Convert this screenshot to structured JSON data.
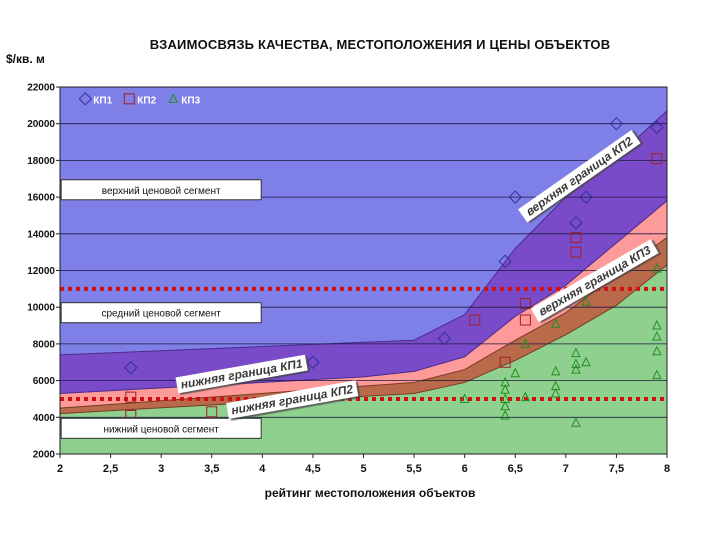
{
  "chart_data": {
    "type": "scatter",
    "title": "ВЗАИМОСВЯЗЬ КАЧЕСТВА, МЕСТОПОЛОЖЕНИЯ И ЦЕНЫ ОБЪЕКТОВ",
    "ylabel": "$/кв. м",
    "xlabel": "рейтинг местоположения объектов",
    "xlim": [
      2,
      8
    ],
    "ylim": [
      2000,
      22000
    ],
    "xticks": [
      "2",
      "2,5",
      "3",
      "3,5",
      "4",
      "4,5",
      "5",
      "5,5",
      "6",
      "6,5",
      "7",
      "7,5",
      "8"
    ],
    "xtick_values": [
      2,
      2.5,
      3,
      3.5,
      4,
      4.5,
      5,
      5.5,
      6,
      6.5,
      7,
      7.5,
      8
    ],
    "yticks": [
      "2000",
      "4000",
      "6000",
      "8000",
      "10000",
      "12000",
      "14000",
      "16000",
      "18000",
      "20000",
      "22000"
    ],
    "ytick_values": [
      2000,
      4000,
      6000,
      8000,
      10000,
      12000,
      14000,
      16000,
      18000,
      20000,
      22000
    ],
    "grid": "horizontal",
    "legend": {
      "placement": "top-left",
      "entries": [
        {
          "name": "КП1",
          "marker": "diamond",
          "color": "#3030a0"
        },
        {
          "name": "КП2",
          "marker": "square",
          "color": "#a02020"
        },
        {
          "name": "КП3",
          "marker": "triangle",
          "color": "#209020"
        }
      ]
    },
    "series": [
      {
        "name": "КП1",
        "marker": "diamond",
        "color": "#3030a0",
        "points": [
          [
            2.7,
            6700
          ],
          [
            4.5,
            7000
          ],
          [
            5.8,
            8300
          ],
          [
            6.4,
            12500
          ],
          [
            6.5,
            16000
          ],
          [
            7.1,
            14600
          ],
          [
            7.2,
            16000
          ],
          [
            7.5,
            20000
          ],
          [
            7.9,
            19800
          ]
        ]
      },
      {
        "name": "КП2",
        "marker": "square",
        "color": "#a02020",
        "points": [
          [
            2.7,
            5100
          ],
          [
            2.7,
            4100
          ],
          [
            3.5,
            4300
          ],
          [
            6.1,
            9300
          ],
          [
            6.4,
            7000
          ],
          [
            6.6,
            10200
          ],
          [
            6.6,
            9300
          ],
          [
            7.1,
            13800
          ],
          [
            7.1,
            13000
          ],
          [
            7.9,
            18100
          ]
        ]
      },
      {
        "name": "КП3",
        "marker": "triangle",
        "color": "#209020",
        "points": [
          [
            6.0,
            5000
          ],
          [
            6.4,
            5900
          ],
          [
            6.4,
            5500
          ],
          [
            6.4,
            5000
          ],
          [
            6.4,
            4600
          ],
          [
            6.4,
            4100
          ],
          [
            6.5,
            6400
          ],
          [
            6.6,
            8000
          ],
          [
            6.6,
            5100
          ],
          [
            6.9,
            9100
          ],
          [
            6.9,
            6500
          ],
          [
            6.9,
            5700
          ],
          [
            6.9,
            5300
          ],
          [
            7.1,
            7500
          ],
          [
            7.1,
            6900
          ],
          [
            7.1,
            6600
          ],
          [
            7.1,
            3700
          ],
          [
            7.2,
            7000
          ],
          [
            7.2,
            10300
          ],
          [
            7.9,
            9000
          ],
          [
            7.9,
            8400
          ],
          [
            7.9,
            7600
          ],
          [
            7.9,
            6300
          ],
          [
            7.9,
            12100
          ]
        ]
      }
    ],
    "reference_lines": [
      {
        "y": 11000,
        "style": "dotted",
        "color": "#d01010"
      },
      {
        "y": 5000,
        "style": "dotted",
        "color": "#d01010"
      }
    ],
    "bands": {
      "upper_kp2": [
        [
          2,
          7400
        ],
        [
          5.5,
          8200
        ],
        [
          6.0,
          9600
        ],
        [
          6.5,
          13200
        ],
        [
          7.0,
          16000
        ],
        [
          7.5,
          18200
        ],
        [
          8,
          20700
        ]
      ],
      "lower_kp1": [
        [
          2,
          5300
        ],
        [
          5,
          6200
        ],
        [
          5.5,
          6500
        ],
        [
          6,
          7300
        ],
        [
          6.5,
          9500
        ],
        [
          7,
          11200
        ],
        [
          7.5,
          13500
        ],
        [
          8,
          15800
        ]
      ],
      "upper_kp3": [
        [
          2,
          4500
        ],
        [
          5.5,
          5900
        ],
        [
          6,
          6600
        ],
        [
          6.5,
          8200
        ],
        [
          7,
          9700
        ],
        [
          7.5,
          11800
        ],
        [
          8,
          13800
        ]
      ],
      "lower_kp2": [
        [
          2,
          4200
        ],
        [
          5.5,
          5300
        ],
        [
          6,
          5900
        ],
        [
          6.5,
          7100
        ],
        [
          7,
          8500
        ],
        [
          7.5,
          10100
        ],
        [
          8,
          12300
        ]
      ]
    },
    "annotations": [
      {
        "text": "верхний ценовой сегмент",
        "kind": "box",
        "x": 3.0,
        "y": 16400
      },
      {
        "text": "средний ценовой сегмент",
        "kind": "box",
        "x": 3.0,
        "y": 9700
      },
      {
        "text": "нижний ценовой сегмент",
        "kind": "box",
        "x": 3.0,
        "y": 3400
      },
      {
        "text": "верхняя граница КП2",
        "kind": "slanted",
        "x": 7.15,
        "y": 17000,
        "angle": -35
      },
      {
        "text": "верхняя граница КП3",
        "kind": "slanted",
        "x": 7.3,
        "y": 11300,
        "angle": -30
      },
      {
        "text": "нижняя граница КП1",
        "kind": "slanted",
        "x": 3.8,
        "y": 6200,
        "angle": -10
      },
      {
        "text": "нижняя граница КП2",
        "kind": "slanted",
        "x": 4.3,
        "y": 4800,
        "angle": -10
      }
    ]
  }
}
